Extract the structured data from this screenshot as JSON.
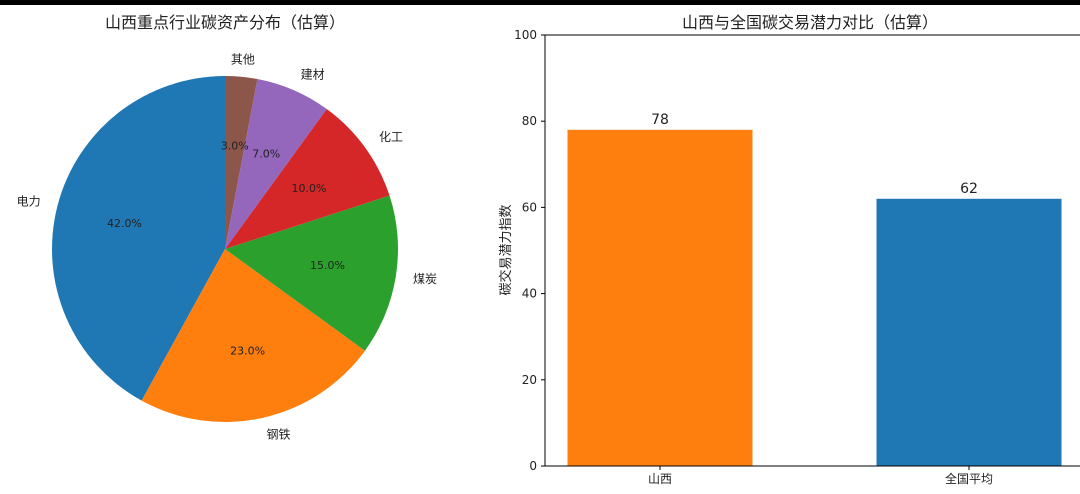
{
  "chart_data": [
    {
      "type": "pie",
      "title": "山西重点行业碳资产分布（估算）",
      "labels": [
        "电力",
        "钢铁",
        "煤炭",
        "化工",
        "建材",
        "其他"
      ],
      "values": [
        42.0,
        23.0,
        15.0,
        10.0,
        7.0,
        3.0
      ],
      "percent_labels": [
        "42.0%",
        "23.0%",
        "15.0%",
        "10.0%",
        "7.0%",
        "3.0%"
      ],
      "colors": [
        "#1f77b4",
        "#ff7f0e",
        "#2ca02c",
        "#d62728",
        "#9467bd",
        "#8c564b"
      ],
      "start_angle": "top",
      "direction": "counterclockwise"
    },
    {
      "type": "bar",
      "title": "山西与全国碳交易潜力对比（估算）",
      "categories": [
        "山西",
        "全国平均"
      ],
      "values": [
        78,
        62
      ],
      "value_labels": [
        "78",
        "62"
      ],
      "colors": [
        "#ff7f0e",
        "#1f77b4"
      ],
      "ylabel": "碳交易潜力指数",
      "xlabel": "",
      "ylim": [
        0,
        100
      ],
      "yticks": [
        "0",
        "20",
        "40",
        "60",
        "80",
        "100"
      ],
      "grid": false
    }
  ]
}
